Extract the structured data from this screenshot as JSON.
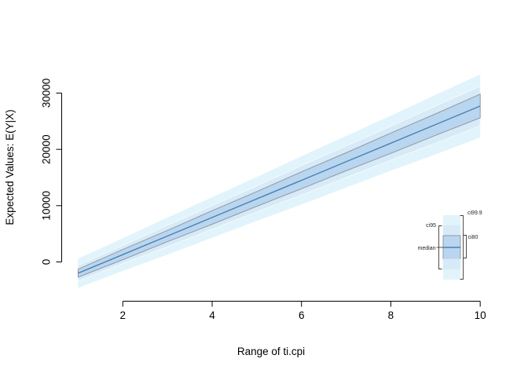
{
  "colors": {
    "background": "#ffffff",
    "ci999": "#e2f4fb",
    "ci95": "#d6eaf8",
    "ci80": "#b9d6f0",
    "ci95_border": "#f2f8fb",
    "ci80_border": "#95989c",
    "median": "#4e7fb0",
    "axis": "#000000",
    "legend_line": "#3c3c3c",
    "legend_section_border": "#e4edf3"
  },
  "chart_data": {
    "type": "area",
    "title": "",
    "xlabel": "Range of ti.cpi",
    "ylabel": "Expected Values: E(Y|X)",
    "xlim": [
      1,
      10
    ],
    "ylim": [
      -4600,
      33300
    ],
    "x_ticks": [
      2,
      4,
      6,
      8,
      10
    ],
    "y_ticks": [
      0,
      10000,
      20000,
      30000
    ],
    "grid": false,
    "legend_position": "inside-lower-right",
    "legend": [
      "ci99.9",
      "ci95",
      "ci80",
      "median"
    ],
    "x": [
      1,
      2,
      3,
      4,
      5,
      6,
      7,
      8,
      9,
      10
    ],
    "series": [
      {
        "name": "median",
        "values": [
          -2000,
          1300,
          4600,
          7900,
          11200,
          14500,
          17800,
          21100,
          24400,
          27700
        ]
      },
      {
        "name": "ci80 lower",
        "values": [
          -2700,
          400,
          3600,
          6700,
          9900,
          13000,
          16200,
          19300,
          22500,
          25600
        ]
      },
      {
        "name": "ci80 upper",
        "values": [
          -1300,
          2200,
          5600,
          9100,
          12500,
          16000,
          19400,
          22900,
          26300,
          29800
        ]
      },
      {
        "name": "ci95 lower",
        "values": [
          -3400,
          -300,
          2700,
          5800,
          8900,
          11900,
          15000,
          18100,
          21100,
          24200
        ]
      },
      {
        "name": "ci95 upper",
        "values": [
          -600,
          2900,
          6500,
          10000,
          13500,
          17100,
          20600,
          24100,
          27700,
          31200
        ]
      },
      {
        "name": "ci99.9 lower",
        "values": [
          -4600,
          -1600,
          1300,
          4300,
          7300,
          10200,
          13200,
          16200,
          19100,
          22100
        ]
      },
      {
        "name": "ci99.9 upper",
        "values": [
          600,
          4200,
          7900,
          11500,
          15100,
          18800,
          22400,
          26000,
          29700,
          33300
        ]
      }
    ]
  }
}
